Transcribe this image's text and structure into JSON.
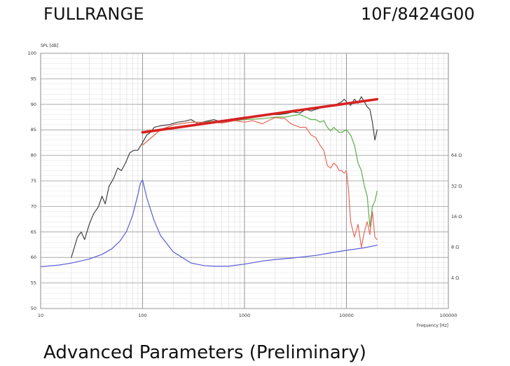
{
  "header": {
    "title": "FULLRANGE",
    "model": "10F/8424G00"
  },
  "footer": {
    "section_title": "Advanced Parameters (Preliminary)"
  },
  "chart_data": {
    "type": "line",
    "title": "",
    "ylabel": "SPL [dB]",
    "xlabel": "Frequency [Hz]",
    "x_scale": "log",
    "xlim": [
      10,
      100000
    ],
    "ylim": [
      50,
      100
    ],
    "x_ticks": [
      "10",
      "100",
      "1000",
      "10000",
      "100000"
    ],
    "y_ticks": [
      "50",
      "55",
      "60",
      "65",
      "70",
      "75",
      "80",
      "85",
      "90",
      "95",
      "100"
    ],
    "impedance_axis": {
      "ticks": [
        {
          "label": "64 Ω",
          "spl": 80
        },
        {
          "label": "32 Ω",
          "spl": 74
        },
        {
          "label": "16 Ω",
          "spl": 68
        },
        {
          "label": "8 Ω",
          "spl": 62
        },
        {
          "label": "4 Ω",
          "spl": 56
        }
      ]
    },
    "grid": true,
    "series": [
      {
        "color": "#404040",
        "x": [
          20,
          23,
          25,
          27,
          30,
          33,
          37,
          40,
          43,
          47,
          52,
          57,
          62,
          68,
          75,
          82,
          90,
          100,
          110,
          120,
          130,
          150,
          180,
          220,
          260,
          300,
          350,
          400,
          450,
          500,
          600,
          700,
          800,
          1000,
          1200,
          1500,
          1800,
          2200,
          2600,
          3000,
          3500,
          4000,
          4500,
          5000,
          6000,
          7000,
          8000,
          9000,
          9500,
          10000,
          11000,
          12000,
          13000,
          14000,
          15000,
          16000,
          17000,
          18000,
          19000,
          20000
        ],
        "y": [
          60,
          64,
          65,
          63.5,
          66.5,
          68.5,
          70,
          72,
          70.5,
          74,
          75.5,
          77.5,
          77,
          78.5,
          80.5,
          81,
          81,
          82.5,
          84,
          84.5,
          85.5,
          85.8,
          86,
          86.5,
          86.7,
          87,
          86.2,
          86.6,
          86.8,
          87,
          86.5,
          87,
          87.2,
          87.5,
          87.5,
          87.7,
          88,
          88,
          88.2,
          88.5,
          88.3,
          89,
          88.7,
          89,
          89.5,
          89.8,
          90,
          90.5,
          91,
          90.5,
          89.8,
          91,
          90.2,
          91.5,
          90.5,
          89.5,
          89,
          86.5,
          83,
          85
        ]
      },
      {
        "color": "#5aae4a",
        "x": [
          100,
          150,
          200,
          300,
          400,
          500,
          600,
          800,
          1000,
          1500,
          2000,
          2500,
          3000,
          3500,
          4000,
          4500,
          5000,
          5500,
          6000,
          6500,
          7000,
          7500,
          8000,
          8500,
          9000,
          9500,
          10000,
          11000,
          12000,
          13000,
          14000,
          15000,
          16000,
          17000,
          18000,
          19000,
          20000
        ],
        "y": [
          82,
          85,
          86,
          86.5,
          86.5,
          86.7,
          86.5,
          86.8,
          87,
          87.2,
          87.5,
          87.5,
          87.8,
          88,
          87.5,
          87,
          87,
          86.5,
          86.8,
          85.5,
          84.8,
          85.5,
          85,
          84.5,
          84.5,
          84.8,
          85,
          84,
          82,
          78.5,
          77,
          74,
          72,
          66,
          70,
          71,
          73
        ]
      },
      {
        "color": "#e8685a",
        "x": [
          100,
          150,
          200,
          300,
          400,
          500,
          600,
          800,
          1000,
          1200,
          1500,
          1800,
          2000,
          2500,
          2800,
          3000,
          3500,
          4000,
          4500,
          5000,
          5500,
          6000,
          6500,
          7000,
          7500,
          8000,
          8500,
          9000,
          9500,
          10000,
          10500,
          11000,
          12000,
          13000,
          14000,
          15000,
          16000,
          17000,
          18000,
          19000,
          20000
        ],
        "y": [
          82,
          85,
          86,
          86.5,
          86.5,
          86.5,
          86.3,
          86.8,
          86.5,
          86.8,
          86.2,
          87,
          87.4,
          87.2,
          86.3,
          86,
          85.5,
          85.5,
          84,
          83.5,
          82,
          81,
          78,
          77.5,
          78.5,
          78,
          77,
          77,
          76.5,
          77,
          73,
          67,
          64,
          66.5,
          62,
          65,
          67,
          64.5,
          69,
          64,
          63.5
        ]
      },
      {
        "color": "#5b5bd6",
        "x": [
          10,
          15,
          20,
          30,
          40,
          50,
          60,
          70,
          80,
          90,
          95,
          100,
          110,
          130,
          150,
          200,
          300,
          400,
          500,
          700,
          1000,
          1500,
          2000,
          3000,
          5000,
          7000,
          10000,
          15000,
          20000
        ],
        "y": [
          58.2,
          58.5,
          58.9,
          59.7,
          60.6,
          61.7,
          63.2,
          65.2,
          68.3,
          72.3,
          74.5,
          75.2,
          71.7,
          67.2,
          64.3,
          61.1,
          58.9,
          58.4,
          58.3,
          58.3,
          58.7,
          59.3,
          59.6,
          59.9,
          60.4,
          60.9,
          61.4,
          61.9,
          62.4
        ]
      },
      {
        "color": "#d82121",
        "x": [
          100,
          20000
        ],
        "y": [
          84.5,
          91
        ]
      }
    ]
  }
}
